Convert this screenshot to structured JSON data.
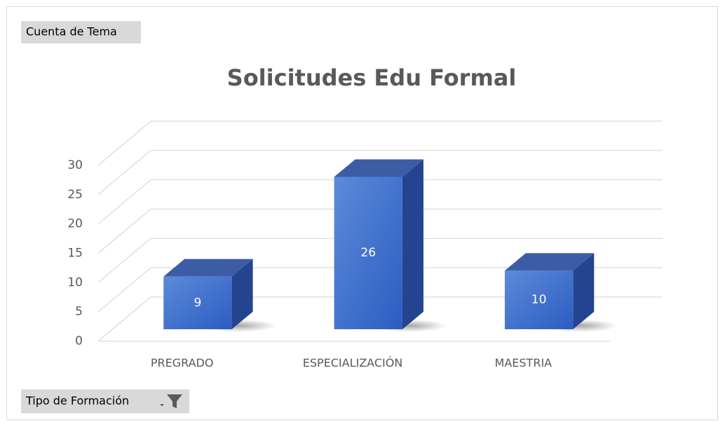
{
  "chart_data": {
    "type": "bar3d",
    "title": "Solicitudes Edu Formal",
    "value_field_button": "Cuenta de Tema",
    "axis_field_button": "Tipo de Formación",
    "categories": [
      "PREGRADO",
      "ESPECIALIZACIÓN",
      "MAESTRIA"
    ],
    "values": [
      9,
      26,
      10
    ],
    "color": "#4472c4",
    "ylim": [
      0,
      30
    ],
    "yticks": [
      0,
      5,
      10,
      15,
      20,
      25,
      30
    ],
    "grid": true
  }
}
